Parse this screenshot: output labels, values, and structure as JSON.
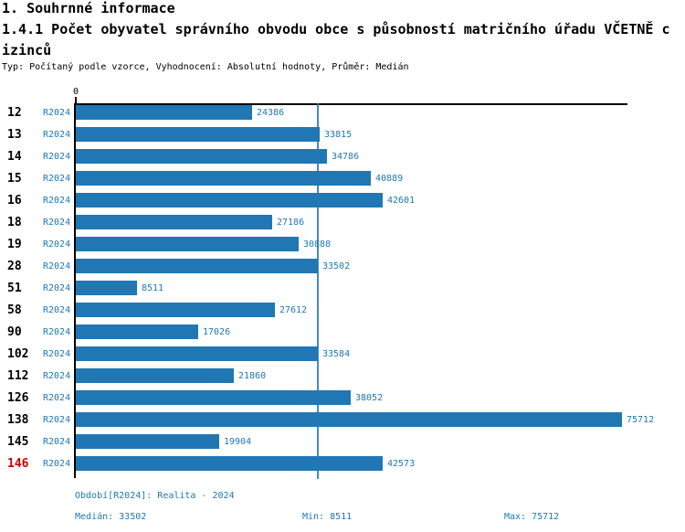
{
  "header": {
    "title": "1. Souhrnné informace",
    "subtitle_line1": "1.4.1 Počet obyvatel správního obvodu obce s působností matričního úřadu VČETNĚ c",
    "subtitle_line2": "izinců",
    "meta": "Typ: Počítaný podle vzorce, Vyhodnocení: Absolutní hodnoty, Průměr: Medián"
  },
  "chart_data": {
    "type": "bar",
    "orientation": "horizontal",
    "title": "1.4.1 Počet obyvatel správního obvodu obce s působností matričního úřadu VČETNĚ cizinců",
    "series_label": "R2024",
    "zero_label": "0",
    "categories": [
      "12",
      "13",
      "14",
      "15",
      "16",
      "18",
      "19",
      "28",
      "51",
      "58",
      "90",
      "102",
      "112",
      "126",
      "138",
      "145",
      "146"
    ],
    "values": [
      24386,
      33815,
      34786,
      40889,
      42601,
      27186,
      30888,
      33502,
      8511,
      27612,
      17026,
      33584,
      21860,
      38052,
      75712,
      19904,
      42573
    ],
    "flagged_categories": [
      "146"
    ],
    "xlim": [
      0,
      75712
    ],
    "median": 33502,
    "min": 8511,
    "max": 75712,
    "annotations": {
      "median_line_value": 33502
    },
    "legend_position": "none",
    "grid": "median-line-only"
  },
  "footer": {
    "period": "Období[R2024]: Realita - 2024",
    "median": "Medián: 33502",
    "min": "Min: 8511",
    "max": "Max: 75712"
  },
  "colors": {
    "bar": "#2077b4",
    "accent_text": "#1f77b4",
    "flagged": "#cc0000",
    "axis": "#000000",
    "background": "#ffffff"
  }
}
